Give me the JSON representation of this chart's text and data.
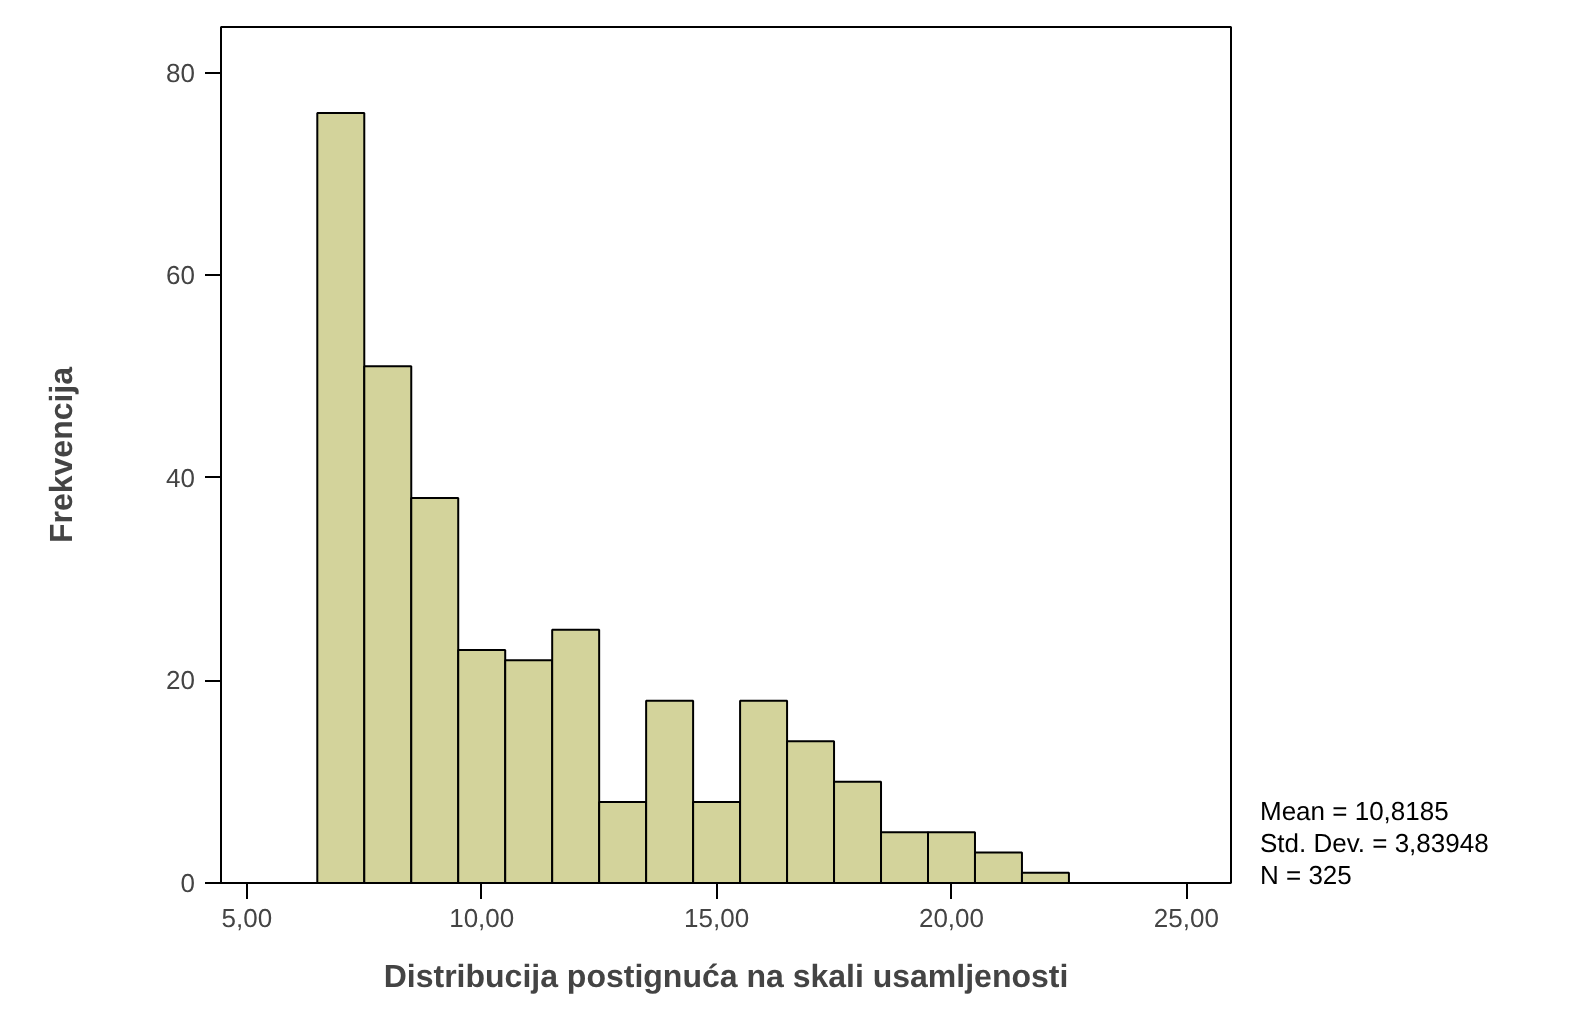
{
  "chart_data": {
    "type": "histogram",
    "xlabel": "Distribucija postignuća na skali usamljenosti",
    "ylabel": "Frekvencija",
    "bins": [
      6.5,
      7.5,
      8.5,
      9.5,
      10.5,
      11.5,
      12.5,
      13.5,
      14.5,
      15.5,
      16.5,
      17.5,
      18.5,
      19.5,
      20.5,
      21.5,
      22.5
    ],
    "values": [
      76,
      51,
      38,
      23,
      22,
      25,
      8,
      18,
      8,
      18,
      14,
      10,
      5,
      5,
      3,
      1
    ],
    "color": "#d3d39b",
    "xlim": [
      4.45,
      25.95
    ],
    "ylim": [
      0,
      84.5
    ],
    "xticks": [
      {
        "value": 5,
        "label": "5,00"
      },
      {
        "value": 10,
        "label": "10,00"
      },
      {
        "value": 15,
        "label": "15,00"
      },
      {
        "value": 20,
        "label": "20,00"
      },
      {
        "value": 25,
        "label": "25,00"
      }
    ],
    "yticks": [
      0,
      20,
      40,
      60,
      80
    ],
    "grid": false,
    "annotations": [
      "Mean = 10,8185",
      "Std. Dev. = 3,83948",
      "N = 325"
    ]
  }
}
